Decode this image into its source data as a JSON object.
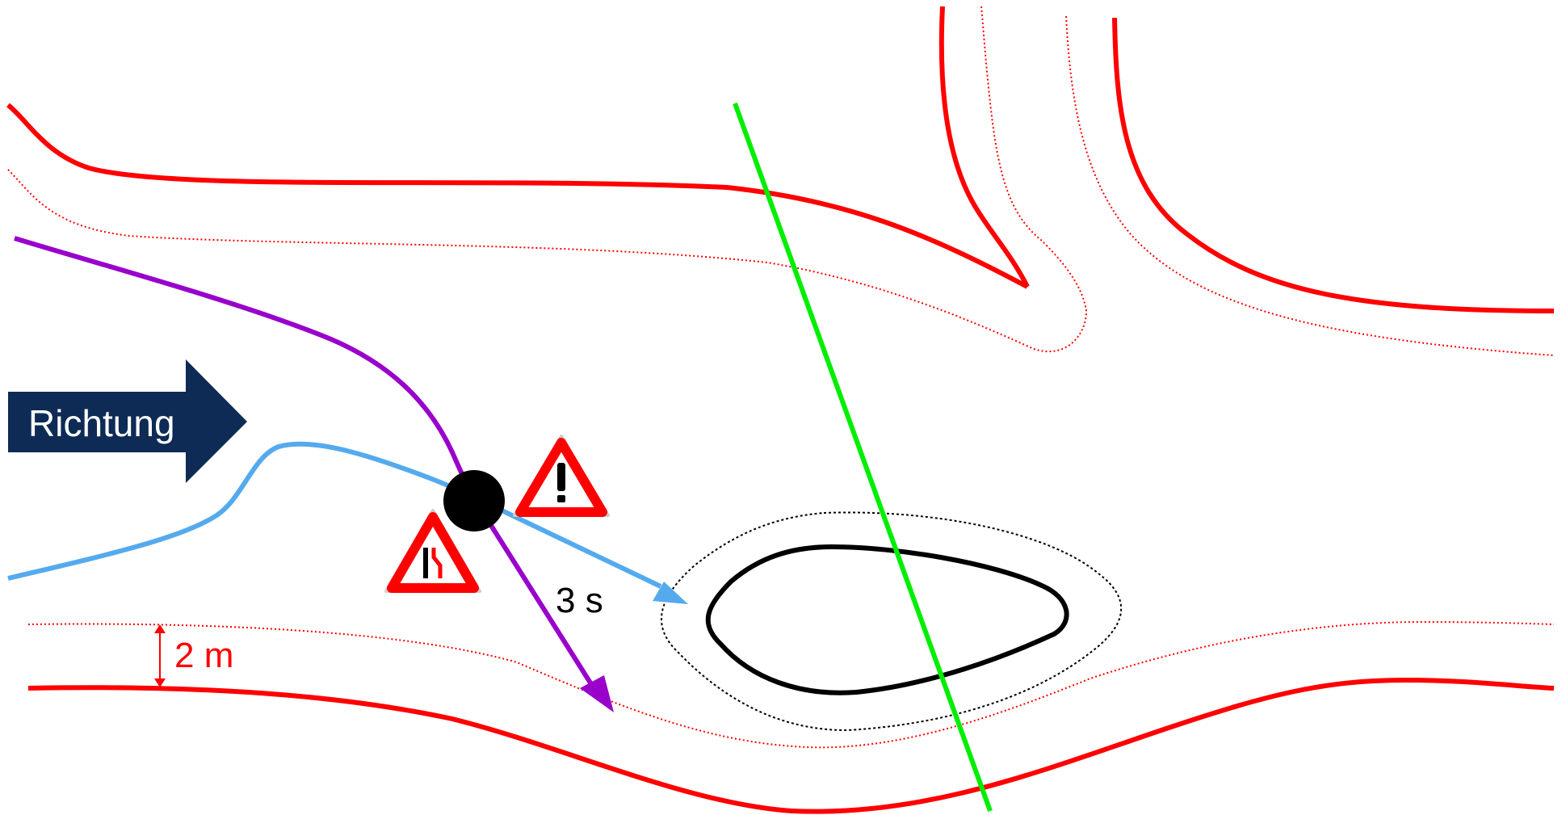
{
  "direction_label": "Richtung",
  "time_label": "3 s",
  "distance_label": "2 m",
  "colors": {
    "road_boundary": "#ff0000",
    "safety_margin": "#ff0000",
    "obstacle": "#000000",
    "vehicle": "#000000",
    "planned_path": "#9900cc",
    "alternative_path": "#55aaee",
    "crossing_line": "#00ee00",
    "direction_arrow": "#0d2b55",
    "warning_sign_border": "#ff0000"
  },
  "icons": [
    "warning-sign-exclamation-icon",
    "warning-sign-road-narrows-icon"
  ]
}
